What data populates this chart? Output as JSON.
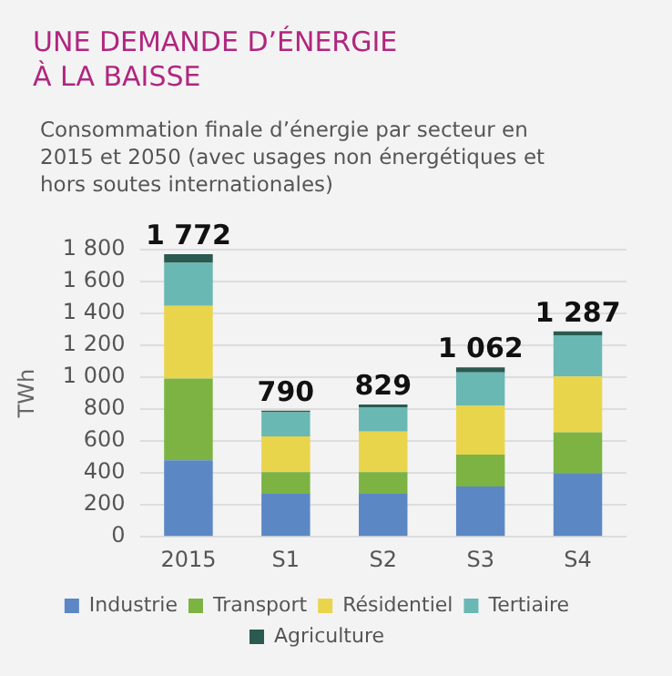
{
  "chart_data": {
    "type": "bar",
    "title": "UNE DEMANDE D’ÉNERGIE\nÀ LA BAISSE",
    "subtitle": "Consommation finale d’énergie par secteur en 2015 et 2050 (avec usages non énergétiques et hors soutes internationales)",
    "ylabel": "TWh",
    "categories": [
      "2015",
      "S1",
      "S2",
      "S3",
      "S4"
    ],
    "stacked": true,
    "series": [
      {
        "name": "Industrie",
        "color": "#5b87c5",
        "values": [
          480,
          270,
          270,
          315,
          400
        ]
      },
      {
        "name": "Transport",
        "color": "#7cb342",
        "values": [
          512,
          135,
          135,
          200,
          255
        ]
      },
      {
        "name": "Résidentiel",
        "color": "#e9d54c",
        "values": [
          456,
          225,
          255,
          305,
          350
        ]
      },
      {
        "name": "Tertiaire",
        "color": "#69b8b4",
        "values": [
          269,
          150,
          152,
          210,
          255
        ]
      },
      {
        "name": "Agriculture",
        "color": "#2a5a50",
        "values": [
          55,
          10,
          17,
          32,
          27
        ]
      }
    ],
    "totals": [
      "1 772",
      "790",
      "829",
      "1 062",
      "1 287"
    ],
    "ylim": [
      0,
      1800
    ],
    "yticks": [
      0,
      200,
      400,
      600,
      800,
      {
        "value": 1000,
        "label": "1 000"
      },
      {
        "value": 1200,
        "label": "1 200"
      },
      {
        "value": 1400,
        "label": "1 400"
      },
      {
        "value": 1600,
        "label": "1 600"
      },
      {
        "value": 1800,
        "label": "1 800"
      }
    ],
    "grid": "y",
    "legend": "bottom"
  }
}
